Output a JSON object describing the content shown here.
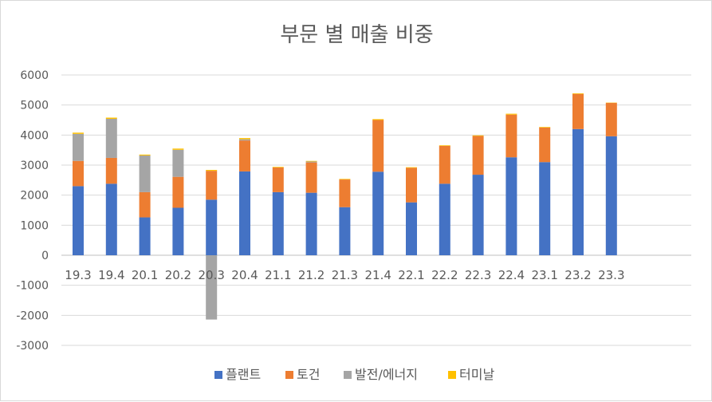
{
  "chart_data": {
    "type": "bar",
    "stacked": true,
    "title": "부문 별 매출 비중",
    "xlabel": "",
    "ylabel": "",
    "ylim": [
      -3000,
      6000
    ],
    "yticks": [
      6000,
      5000,
      4000,
      3000,
      2000,
      1000,
      0,
      -1000,
      -2000,
      -3000
    ],
    "grid": true,
    "legend_position": "bottom",
    "categories": [
      "19.3",
      "19.4",
      "20.1",
      "20.2",
      "20.3",
      "20.4",
      "21.1",
      "21.2",
      "21.3",
      "21.4",
      "22.1",
      "22.2",
      "22.3",
      "22.4",
      "23.1",
      "23.2",
      "23.3"
    ],
    "series": [
      {
        "name": "플랜트",
        "color": "#4472c4",
        "values": [
          2300,
          2380,
          1260,
          1580,
          1850,
          2790,
          2100,
          2080,
          1600,
          2780,
          1760,
          2380,
          2680,
          3260,
          3100,
          4200,
          3960
        ]
      },
      {
        "name": "토건",
        "color": "#ed7d31",
        "values": [
          840,
          860,
          840,
          1030,
          960,
          1030,
          820,
          1010,
          920,
          1720,
          1150,
          1260,
          1290,
          1420,
          1150,
          1170,
          1110
        ]
      },
      {
        "name": "발전/에너지",
        "color": "#a5a5a5",
        "values": [
          900,
          1300,
          1220,
          900,
          -2140,
          40,
          0,
          30,
          0,
          0,
          0,
          0,
          0,
          0,
          0,
          0,
          0
        ]
      },
      {
        "name": "터미날",
        "color": "#ffc000",
        "values": [
          40,
          40,
          30,
          40,
          30,
          40,
          20,
          20,
          20,
          30,
          20,
          20,
          20,
          30,
          20,
          20,
          10
        ]
      }
    ]
  }
}
